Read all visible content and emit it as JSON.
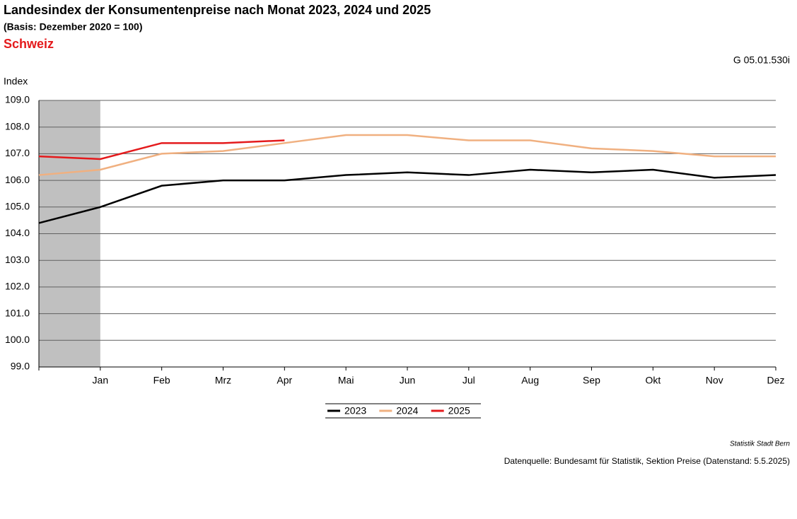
{
  "chart_data": {
    "type": "line",
    "title": "Landesindex der Konsumentenpreise nach Monat 2023, 2024 und 2025",
    "subtitle": "(Basis: Dezember 2020 = 100)",
    "region": "Schweiz",
    "code": "G 05.01.530i",
    "y_label": "Index",
    "credit": "Statistik Stadt Bern",
    "source": "Datenquelle: Bundesamt für Statistik, Sektion Preise (Datenstand: 5.5.2025)",
    "categories": [
      null,
      "Jan",
      "Feb",
      "Mrz",
      "Apr",
      "Mai",
      "Jun",
      "Jul",
      "Aug",
      "Sep",
      "Okt",
      "Nov",
      "Dez"
    ],
    "series": [
      {
        "name": "2023",
        "color": "#000000",
        "values": [
          104.4,
          105.0,
          105.8,
          106.0,
          106.0,
          106.2,
          106.3,
          106.2,
          106.4,
          106.3,
          106.4,
          106.1,
          106.2
        ]
      },
      {
        "name": "2024",
        "color": "#f0b080",
        "values": [
          106.2,
          106.4,
          107.0,
          107.1,
          107.4,
          107.7,
          107.7,
          107.5,
          107.5,
          107.2,
          107.1,
          106.9,
          106.9
        ]
      },
      {
        "name": "2025",
        "color": "#e41a1c",
        "values": [
          106.9,
          106.8,
          107.4,
          107.4,
          107.5,
          null,
          null,
          null,
          null,
          null,
          null,
          null,
          null
        ]
      }
    ],
    "ylim": [
      99,
      109
    ],
    "yticks": [
      {
        "value": 99,
        "label": "99.0"
      },
      {
        "value": 100,
        "label": "100.0"
      },
      {
        "value": 101,
        "label": "101.0"
      },
      {
        "value": 102,
        "label": "102.0"
      },
      {
        "value": 103,
        "label": "103.0"
      },
      {
        "value": 104,
        "label": "104.0"
      },
      {
        "value": 105,
        "label": "105.0"
      },
      {
        "value": 106,
        "label": "106.0"
      },
      {
        "value": 107,
        "label": "107.0"
      },
      {
        "value": 108,
        "label": "108.0"
      },
      {
        "value": 109,
        "label": "109.0"
      }
    ],
    "grid": true,
    "legend": "bottom"
  }
}
